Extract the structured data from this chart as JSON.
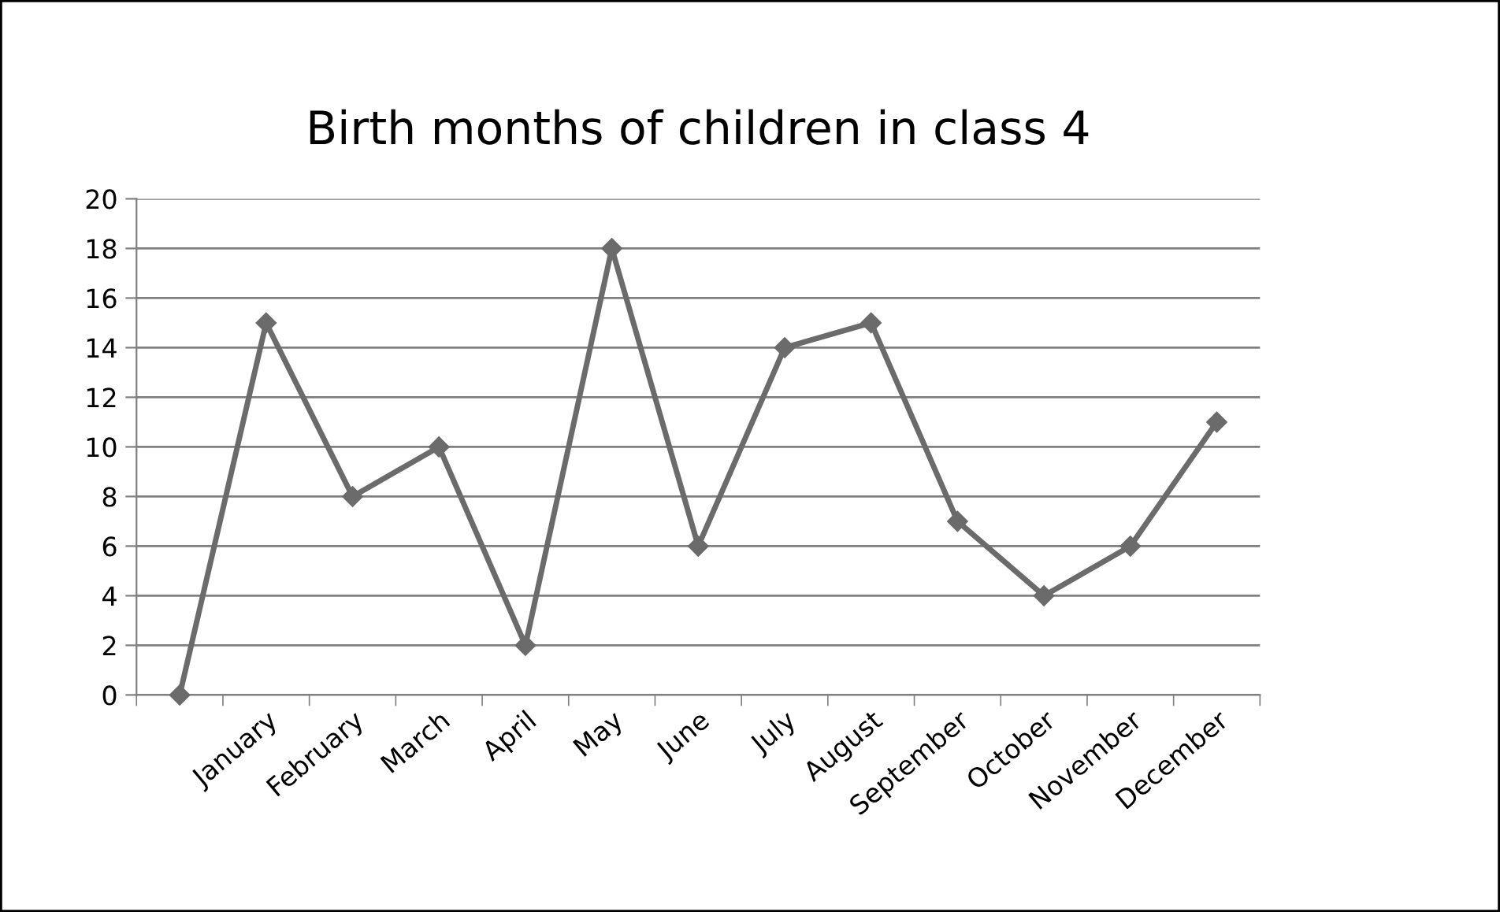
{
  "chart_data": {
    "type": "line",
    "title": "Birth months of children in class 4",
    "categories": [
      null,
      "January",
      "February",
      "March",
      "April",
      "May",
      "June",
      "July",
      "August",
      "September",
      "October",
      "November",
      "December"
    ],
    "series": [
      {
        "color": "#6b6b6b",
        "values": [
          0,
          15,
          8,
          10,
          2,
          18,
          6,
          14,
          15,
          7,
          4,
          6,
          11
        ]
      }
    ],
    "ylim": [
      0,
      20
    ],
    "yticks": [
      0,
      2,
      4,
      6,
      8,
      10,
      12,
      14,
      16,
      18,
      20
    ],
    "grid": "y",
    "marker": "diamond",
    "line_style": "solid",
    "legend": false
  }
}
